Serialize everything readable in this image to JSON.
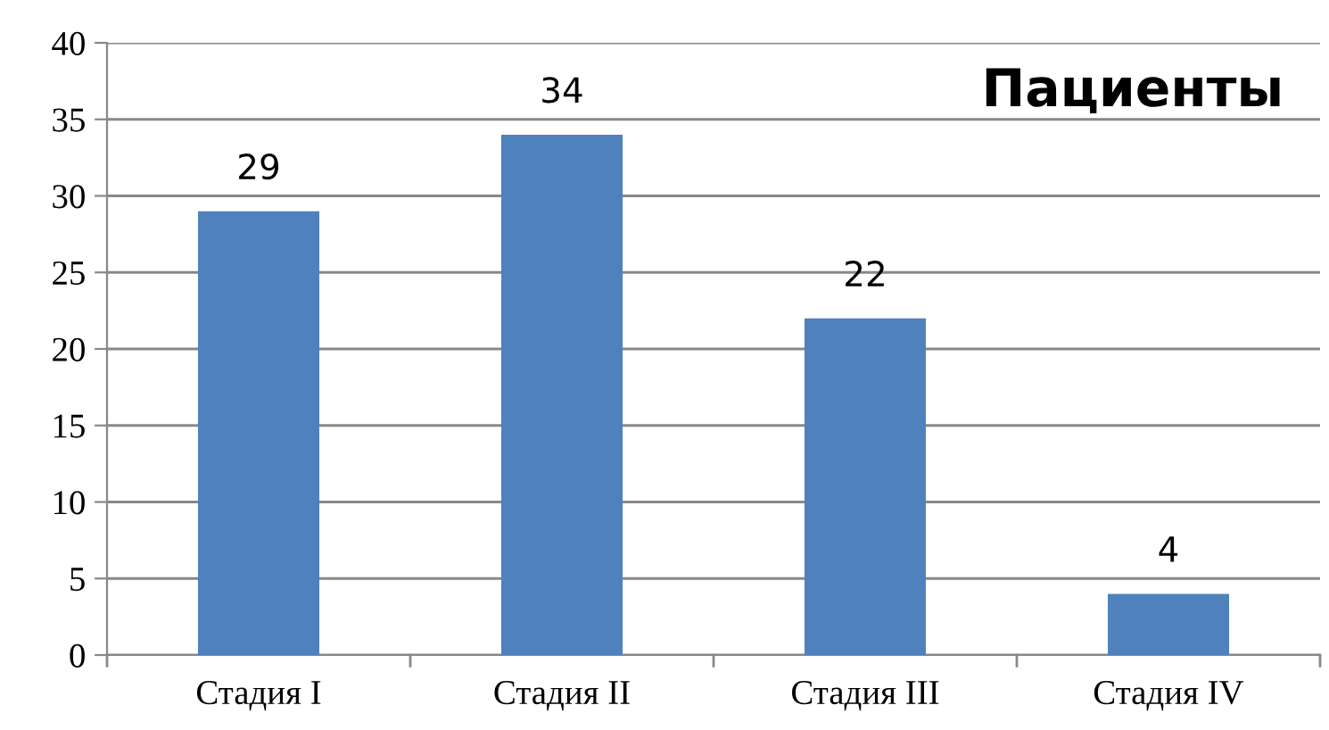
{
  "chart_data": {
    "type": "bar",
    "title": "Пациенты",
    "categories": [
      "Стадия I",
      "Стадия II",
      "Стадия III",
      "Стадия IV"
    ],
    "values": [
      29,
      34,
      22,
      4
    ],
    "color": "#4f81bd",
    "ylim": [
      0,
      40
    ],
    "yticks": [
      0,
      5,
      10,
      15,
      20,
      25,
      30,
      35,
      40
    ],
    "grid": "y",
    "data_labels": true,
    "legend": false
  }
}
